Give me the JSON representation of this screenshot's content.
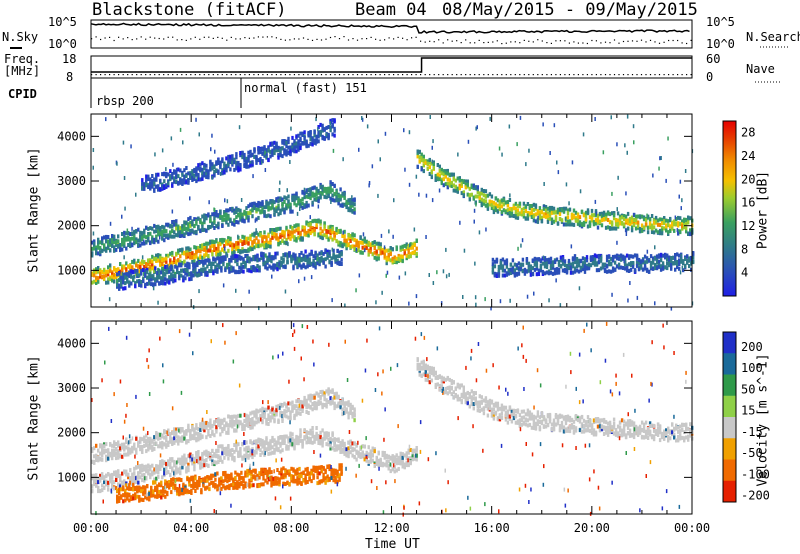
{
  "header": {
    "station": "Blackstone (fitACF)",
    "beam": "Beam 04",
    "date_range": "08/May/2015 - 09/May/2015"
  },
  "top_panels": {
    "nsky_label": "N.Sky",
    "nsearch_label": "N.Search",
    "nsky_ticks": [
      "10^5",
      "10^0"
    ],
    "nsearch_ticks": [
      "10^5",
      "10^0"
    ],
    "freq_label_1": "Freq.",
    "freq_label_2": "[MHz]",
    "freq_ticks": [
      "18",
      "8"
    ],
    "nave_label": "Nave",
    "nave_ticks": [
      "60",
      "0"
    ],
    "cpid_label": "CPID",
    "cpid_segments": [
      {
        "label": "rbsp 200",
        "start_hour": 0
      },
      {
        "label": "normal (fast) 151",
        "start_hour": 6
      }
    ]
  },
  "x_axis": {
    "label": "Time UT",
    "ticks": [
      "00:00",
      "04:00",
      "08:00",
      "12:00",
      "16:00",
      "20:00",
      "00:00"
    ],
    "range_hours": [
      0,
      24
    ]
  },
  "chart_data": [
    {
      "type": "heatmap",
      "parameter": "Power",
      "ylabel": "Slant Range [km]",
      "yticks": [
        "1000",
        "2000",
        "3000",
        "4000"
      ],
      "ylim": [
        180,
        4500
      ],
      "colorbar": {
        "label": "Power [dB]",
        "ticks": [
          "4",
          "8",
          "12",
          "16",
          "20",
          "24",
          "28"
        ],
        "range": [
          0,
          30
        ],
        "colors": [
          "#1f1fe6",
          "#2a4fb8",
          "#2f7a8a",
          "#3aa060",
          "#9ccc2e",
          "#f5c000",
          "#f08a00",
          "#e63c00",
          "#e60000"
        ]
      },
      "bands": [
        {
          "t": [
            0.0,
            1.0,
            3.0,
            5.0,
            7.0,
            9.0,
            10.5,
            12.0,
            13.0
          ],
          "r": [
            850,
            950,
            1200,
            1500,
            1700,
            1950,
            1600,
            1300,
            1500
          ],
          "peak_db": 26
        },
        {
          "t": [
            0.0,
            2.0,
            4.0,
            6.0,
            8.0,
            9.5,
            10.5
          ],
          "r": [
            1500,
            1750,
            2000,
            2250,
            2500,
            2800,
            2400
          ],
          "peak_db": 12
        },
        {
          "t": [
            2.0,
            4.0,
            6.0,
            8.0,
            9.0,
            9.7
          ],
          "r": [
            2900,
            3150,
            3450,
            3800,
            4050,
            4200
          ],
          "peak_db": 6
        },
        {
          "t": [
            13.0,
            14.0,
            15.0,
            16.0,
            17.0,
            18.0,
            19.0,
            20.0,
            21.0,
            22.0,
            23.0,
            24.0
          ],
          "r": [
            3500,
            3100,
            2800,
            2500,
            2350,
            2250,
            2200,
            2150,
            2100,
            2050,
            2000,
            2000
          ],
          "peak_db": 20
        },
        {
          "t": [
            1.0,
            3.0,
            5.0,
            7.0,
            9.0,
            10.0
          ],
          "r": [
            750,
            900,
            1100,
            1200,
            1250,
            1300
          ],
          "peak_db": 8
        },
        {
          "t": [
            16.0,
            18.0,
            20.0,
            22.0,
            24.0
          ],
          "r": [
            1050,
            1100,
            1150,
            1150,
            1200
          ],
          "peak_db": 8
        }
      ]
    },
    {
      "type": "heatmap",
      "parameter": "Velocity",
      "ylabel": "Slant Range [km]",
      "yticks": [
        "1000",
        "2000",
        "3000",
        "4000"
      ],
      "ylim": [
        180,
        4500
      ],
      "colorbar": {
        "label": "Velocity [m s^-1]",
        "ticks": [
          "200",
          "100",
          "50",
          "15",
          "-15",
          "-50",
          "-100",
          "-200"
        ],
        "range": [
          -250,
          250
        ],
        "colors": [
          "#2030c8",
          "#1a6a9a",
          "#2f9a4a",
          "#8fd048",
          "#c8c8c8",
          "#f0a000",
          "#f06a00",
          "#e62000"
        ]
      },
      "bands": [
        {
          "t": [
            0.0,
            1.0,
            3.0,
            5.0,
            7.0,
            9.0,
            10.5,
            12.0,
            13.0
          ],
          "r": [
            850,
            950,
            1200,
            1500,
            1700,
            1950,
            1600,
            1300,
            1500
          ],
          "vel": 0
        },
        {
          "t": [
            0.0,
            2.0,
            4.0,
            6.0,
            8.0,
            9.5,
            10.5
          ],
          "r": [
            1500,
            1750,
            2000,
            2250,
            2500,
            2800,
            2400
          ],
          "vel": 0
        },
        {
          "t": [
            13.0,
            14.0,
            15.0,
            16.0,
            17.0,
            18.0,
            19.0,
            20.0,
            21.0,
            22.0,
            23.0,
            24.0
          ],
          "r": [
            3500,
            3100,
            2800,
            2500,
            2350,
            2250,
            2200,
            2150,
            2100,
            2050,
            2000,
            2000
          ],
          "vel": 0
        },
        {
          "t": [
            1.0,
            3.0,
            5.0,
            7.0,
            9.0,
            10.0
          ],
          "r": [
            600,
            750,
            900,
            1000,
            1050,
            1100
          ],
          "vel": -60
        }
      ]
    }
  ]
}
